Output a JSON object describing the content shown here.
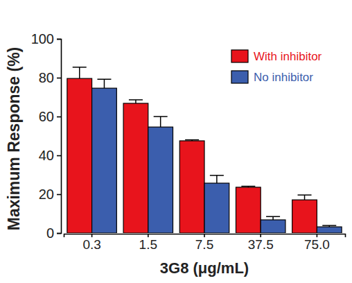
{
  "chart_data": {
    "type": "bar",
    "x_label": "3G8 (μg/mL)",
    "y_label": "Maximum Response (%)",
    "categories": [
      "0.3",
      "1.5",
      "7.5",
      "37.5",
      "75.0"
    ],
    "series": [
      {
        "name": "With inhibitor",
        "color": "#e8141c",
        "values": [
          79.6,
          66.8,
          47.5,
          23.6,
          17.1
        ],
        "errors": [
          5.8,
          1.8,
          0.5,
          0.5,
          2.5
        ]
      },
      {
        "name": "No inhibitor",
        "color": "#3b5ead",
        "values": [
          74.6,
          54.6,
          25.7,
          6.8,
          3.2
        ],
        "errors": [
          4.6,
          5.4,
          4.0,
          1.7,
          0.7
        ]
      }
    ],
    "ylim": [
      0,
      100
    ],
    "yticks": [
      0,
      20,
      40,
      60,
      80,
      100
    ],
    "legend": "upper right"
  }
}
